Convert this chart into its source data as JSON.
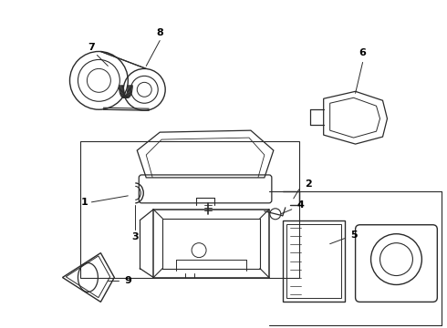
{
  "background_color": "#ffffff",
  "line_color": "#2a2a2a",
  "text_color": "#000000",
  "fig_width": 4.9,
  "fig_height": 3.6,
  "dpi": 100
}
